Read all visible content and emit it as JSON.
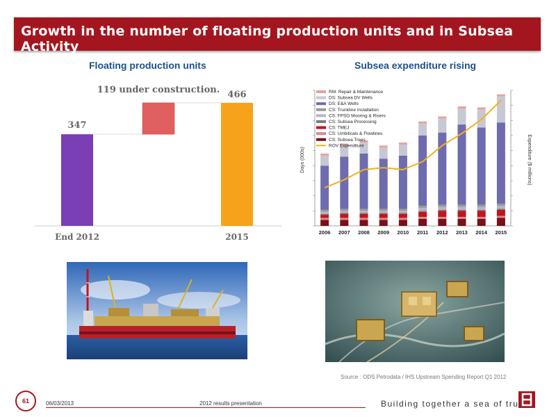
{
  "slide": {
    "title": "Growth in the number of floating production units and in Subsea Activity",
    "left_title": "Floating production units",
    "right_title": "Subsea expenditure rising",
    "source": "Source : ODS Petrodata / IHS Upstream Spending Report Q1 2012",
    "page_number": "61",
    "date": "06/03/2013",
    "presentation": "2012 results presentation",
    "tagline": "Building together a sea of trust",
    "logo": "bourbon-logo-icon",
    "photo_left": "fpso-vessel-photo",
    "photo_right": "subsea-equipment-photo"
  },
  "chart_data": [
    {
      "type": "bar",
      "subtype": "waterfall",
      "categories": [
        "End 2012",
        "",
        "2015"
      ],
      "values": [
        347,
        119,
        466
      ],
      "value_labels": [
        "347",
        "119 under construction.",
        "466"
      ],
      "colors": [
        "#7b3fb5",
        "#e06060",
        "#f7a21b"
      ],
      "ylim": [
        0,
        500
      ],
      "grid": false,
      "legend": "none"
    },
    {
      "type": "bar",
      "subtype": "stacked-bar-with-line",
      "categories": [
        "2006",
        "2007",
        "2008",
        "2009",
        "2010",
        "2011",
        "2012",
        "2013",
        "2014",
        "2015"
      ],
      "ylabel": "Days (000s)",
      "y2label": "Expenditure ($ millions)",
      "legend": "top-left",
      "series": [
        {
          "name": "RM: Repair & Maintenance",
          "color": "#e8a0a0",
          "values": [
            2,
            2,
            2,
            2,
            2,
            2,
            2,
            2,
            2,
            2
          ]
        },
        {
          "name": "DS: Subsea DV Wells",
          "color": "#c8c8d4",
          "values": [
            10,
            11,
            11,
            11,
            11,
            12,
            14,
            16,
            18,
            26
          ]
        },
        {
          "name": "DS: E&A Wells",
          "color": "#6e6cae",
          "values": [
            44,
            52,
            55,
            50,
            53,
            70,
            72,
            80,
            77,
            81
          ]
        },
        {
          "name": "CS: Trunkline Installation",
          "color": "#9a9a9a",
          "values": [
            2,
            2,
            2,
            2,
            2,
            2,
            2,
            2,
            2,
            2
          ]
        },
        {
          "name": "CS: FPSO Mooring & Risers",
          "color": "#b5b5c5",
          "values": [
            2,
            2,
            2,
            2,
            2,
            3,
            3,
            3,
            3,
            3
          ]
        },
        {
          "name": "CS: Subsea Processing",
          "color": "#7c7c7c",
          "values": [
            1,
            1,
            1,
            1,
            1,
            1,
            1,
            1,
            1,
            1
          ]
        },
        {
          "name": "CS: TMEJ",
          "color": "#c0151e",
          "values": [
            3,
            4,
            4,
            4,
            4,
            5,
            6,
            6,
            6,
            6
          ]
        },
        {
          "name": "CS: Umbilicals & Flowlines",
          "color": "#d9898e",
          "values": [
            2,
            2,
            2,
            2,
            2,
            2,
            2,
            2,
            2,
            2
          ]
        },
        {
          "name": "CS: Subsea Trees",
          "color": "#7a1018",
          "values": [
            6,
            6,
            6,
            6,
            6,
            7,
            7,
            7,
            7,
            8
          ]
        }
      ],
      "line": {
        "name": "ROV Expenditure",
        "color": "#f0b21e",
        "values": [
          38,
          46,
          56,
          58,
          56,
          64,
          80,
          92,
          106,
          125
        ]
      }
    }
  ]
}
